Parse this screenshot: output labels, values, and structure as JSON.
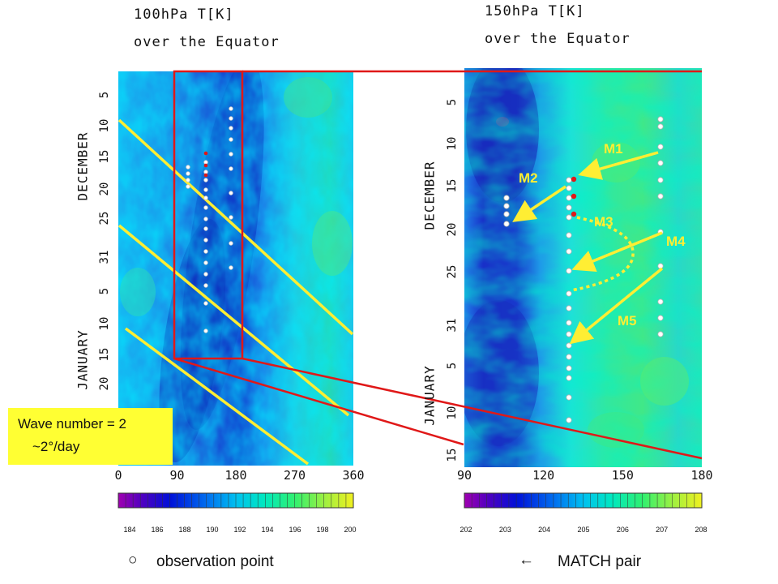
{
  "chart_data": [
    {
      "type": "heatmap",
      "title": "100hPa T[K]",
      "subtitle": "over the Equator",
      "x_ticks": [
        "0",
        "90",
        "180",
        "270",
        "360"
      ],
      "xlim": [
        0,
        360
      ],
      "y_day_ticks": [
        "5",
        "10",
        "15",
        "20",
        "25",
        "31",
        "5",
        "10",
        "15",
        "20"
      ],
      "y_months": [
        "DECEMBER",
        "JANUARY"
      ],
      "colorbar_ticks": [
        "184",
        "186",
        "188",
        "190",
        "192",
        "194",
        "196",
        "198",
        "200"
      ],
      "colorbar_range": [
        184,
        200
      ]
    },
    {
      "type": "heatmap",
      "title": "150hPa T[K]",
      "subtitle": "over the Equator",
      "x_ticks": [
        "90",
        "120",
        "150",
        "180"
      ],
      "xlim": [
        90,
        180
      ],
      "y_day_ticks": [
        "5",
        "10",
        "15",
        "20",
        "25",
        "31",
        "5",
        "10",
        "15"
      ],
      "y_months": [
        "DECEMBER",
        "JANUARY"
      ],
      "colorbar_ticks": [
        "202",
        "203",
        "204",
        "205",
        "206",
        "207",
        "208"
      ],
      "colorbar_range": [
        202,
        208
      ],
      "match_pairs": [
        "M1",
        "M2",
        "M3",
        "M4",
        "M5"
      ]
    }
  ],
  "annotation": {
    "line1": "Wave number = 2",
    "line2": "~2°/day"
  },
  "legend": {
    "marker_symbol": "○",
    "marker_label": "observation point",
    "arrow_symbol": "←",
    "arrow_label": "MATCH pair"
  },
  "colors": {
    "highlight": "#ff0000",
    "phase_lines": "#ffee33",
    "annotation_box": "#ffff33"
  }
}
